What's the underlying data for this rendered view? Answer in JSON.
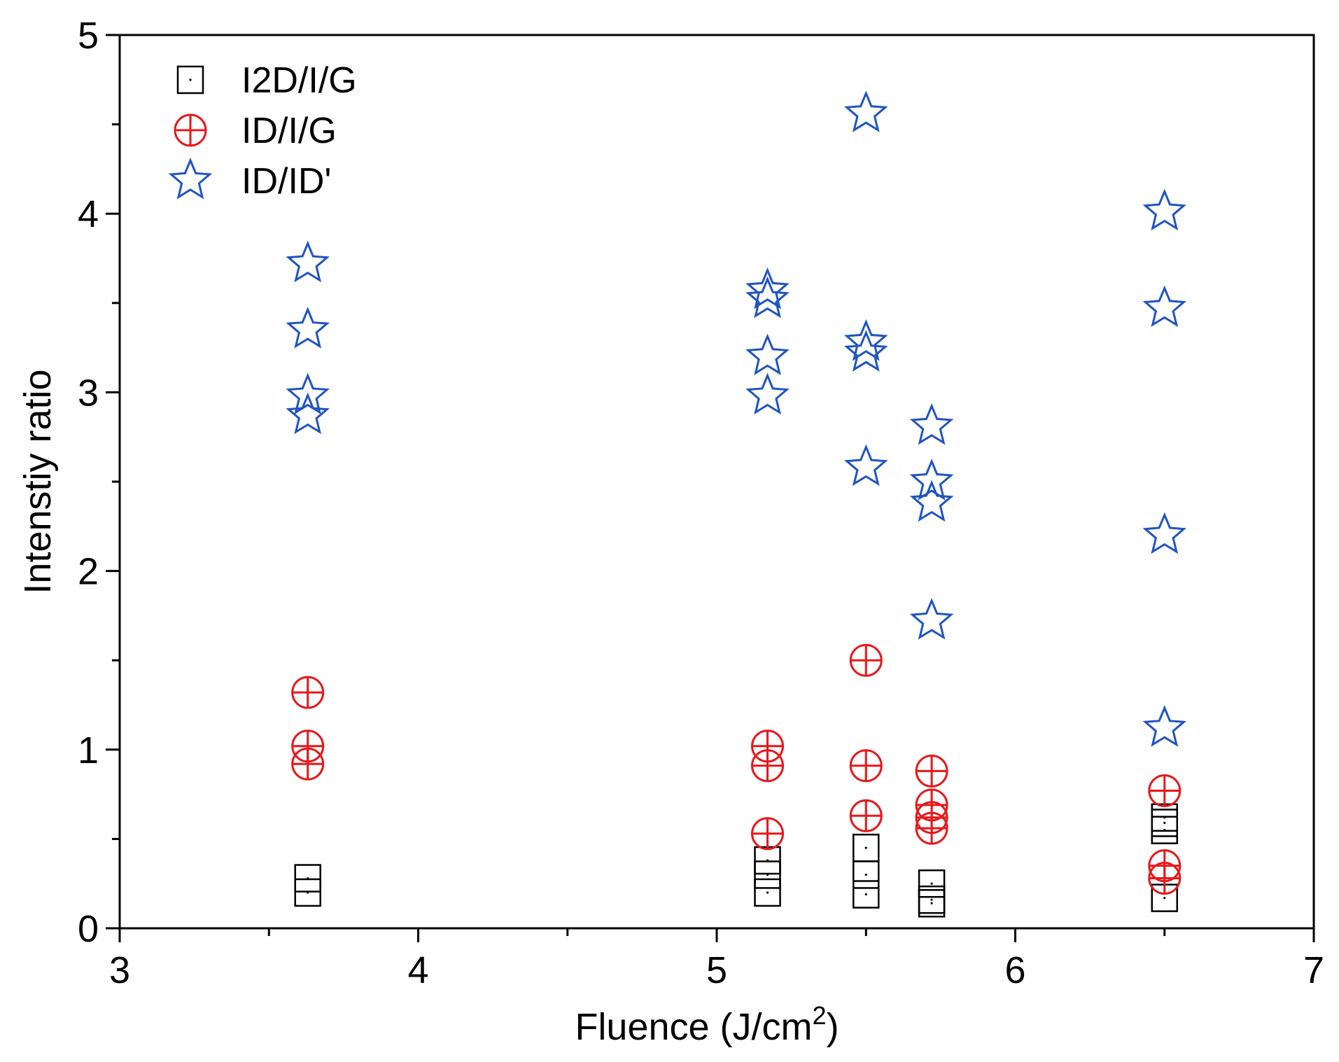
{
  "chart_data": {
    "type": "scatter",
    "xlabel": "Fluence (J/cm",
    "xlabel_sup": "2",
    "xlabel_end": ")",
    "ylabel": "Intenstiy ratio",
    "xlim": [
      3,
      7
    ],
    "ylim": [
      0,
      5
    ],
    "x_ticks": [
      "3",
      "4",
      "5",
      "6",
      "7"
    ],
    "y_ticks": [
      "0",
      "1",
      "2",
      "3",
      "4",
      "5"
    ],
    "legend_position": "top-left",
    "grid": false,
    "series": [
      {
        "name": "I2D/I/G",
        "marker": "square",
        "color": "#000000",
        "points": [
          [
            3.63,
            0.2
          ],
          [
            3.63,
            0.28
          ],
          [
            5.17,
            0.2
          ],
          [
            5.17,
            0.3
          ],
          [
            5.17,
            0.38
          ],
          [
            5.5,
            0.19
          ],
          [
            5.5,
            0.3
          ],
          [
            5.5,
            0.45
          ],
          [
            5.72,
            0.14
          ],
          [
            5.72,
            0.16
          ],
          [
            5.72,
            0.25
          ],
          [
            6.5,
            0.17
          ],
          [
            6.5,
            0.55
          ],
          [
            6.5,
            0.59
          ],
          [
            6.5,
            0.62
          ]
        ]
      },
      {
        "name": "ID/I/G",
        "marker": "circle-plus",
        "color": "#e8171a",
        "points": [
          [
            3.63,
            0.92
          ],
          [
            3.63,
            1.02
          ],
          [
            3.63,
            1.32
          ],
          [
            5.17,
            0.53
          ],
          [
            5.17,
            0.91
          ],
          [
            5.17,
            1.02
          ],
          [
            5.5,
            0.63
          ],
          [
            5.5,
            0.91
          ],
          [
            5.5,
            1.5
          ],
          [
            5.72,
            0.56
          ],
          [
            5.72,
            0.62
          ],
          [
            5.72,
            0.69
          ],
          [
            5.72,
            0.88
          ],
          [
            6.5,
            0.28
          ],
          [
            6.5,
            0.35
          ],
          [
            6.5,
            0.77
          ]
        ]
      },
      {
        "name": "ID/ID'",
        "marker": "star",
        "color": "#1f54c2",
        "points": [
          [
            3.63,
            2.87
          ],
          [
            3.63,
            2.98
          ],
          [
            3.63,
            3.35
          ],
          [
            3.63,
            3.72
          ],
          [
            5.17,
            2.98
          ],
          [
            5.17,
            3.2
          ],
          [
            5.17,
            3.52
          ],
          [
            5.17,
            3.57
          ],
          [
            5.5,
            2.58
          ],
          [
            5.5,
            3.22
          ],
          [
            5.5,
            3.28
          ],
          [
            5.5,
            4.56
          ],
          [
            5.72,
            1.72
          ],
          [
            5.72,
            2.38
          ],
          [
            5.72,
            2.5
          ],
          [
            5.72,
            2.81
          ],
          [
            6.5,
            1.12
          ],
          [
            6.5,
            2.2
          ],
          [
            6.5,
            3.47
          ],
          [
            6.5,
            4.01
          ]
        ]
      }
    ]
  }
}
